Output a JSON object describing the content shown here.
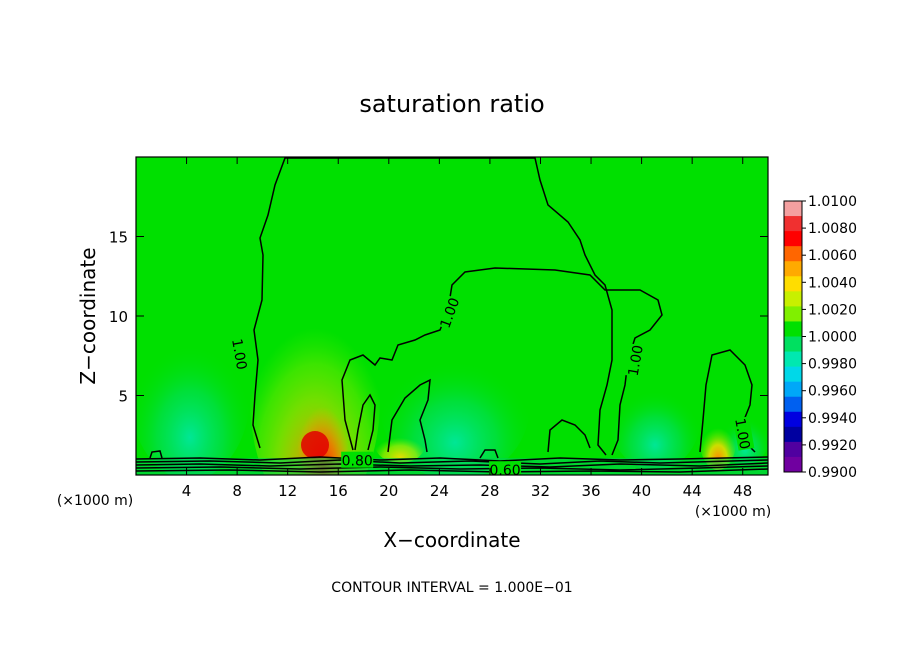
{
  "chart_data": {
    "type": "heatmap",
    "title": "saturation ratio",
    "xlabel": "X−coordinate",
    "ylabel": "Z−coordinate",
    "x_unit": "(×1000 m)",
    "xlim": [
      0,
      50
    ],
    "ylim": [
      0,
      20
    ],
    "x_ticks": [
      4,
      8,
      12,
      16,
      20,
      24,
      28,
      32,
      36,
      40,
      44,
      48
    ],
    "y_ticks": [
      5,
      10,
      15
    ],
    "colorbar": {
      "ticks": [
        "1.0100",
        "1.0080",
        "1.0060",
        "1.0040",
        "1.0020",
        "1.0000",
        "0.9980",
        "0.9960",
        "0.9940",
        "0.9920",
        "0.9900"
      ],
      "colors": [
        "#f4a0a0",
        "#f03030",
        "#ff0000",
        "#ff6600",
        "#ffaa00",
        "#ffdd00",
        "#c8f000",
        "#80f000",
        "#00e000",
        "#00e060",
        "#00e8b0",
        "#00d8e8",
        "#00a8f8",
        "#0060f0",
        "#0000e0",
        "#0000a0",
        "#5000a0",
        "#7000a0"
      ]
    },
    "contours": {
      "interval_text": "CONTOUR INTERVAL = 1.000E−01",
      "labels": [
        {
          "text": "1.00",
          "x": 8.2,
          "y": 7.6,
          "angle": 80
        },
        {
          "text": "1.00",
          "x": 24.8,
          "y": 10.2,
          "angle": -70
        },
        {
          "text": "1.00",
          "x": 39.5,
          "y": 7.2,
          "angle": -80
        },
        {
          "text": "1.00",
          "x": 48.0,
          "y": 2.6,
          "angle": 80
        },
        {
          "text": "0.80",
          "x": 17.5,
          "y": 0.9,
          "angle": 0
        },
        {
          "text": "0.60",
          "x": 29.2,
          "y": 0.3,
          "angle": 0
        }
      ]
    }
  }
}
